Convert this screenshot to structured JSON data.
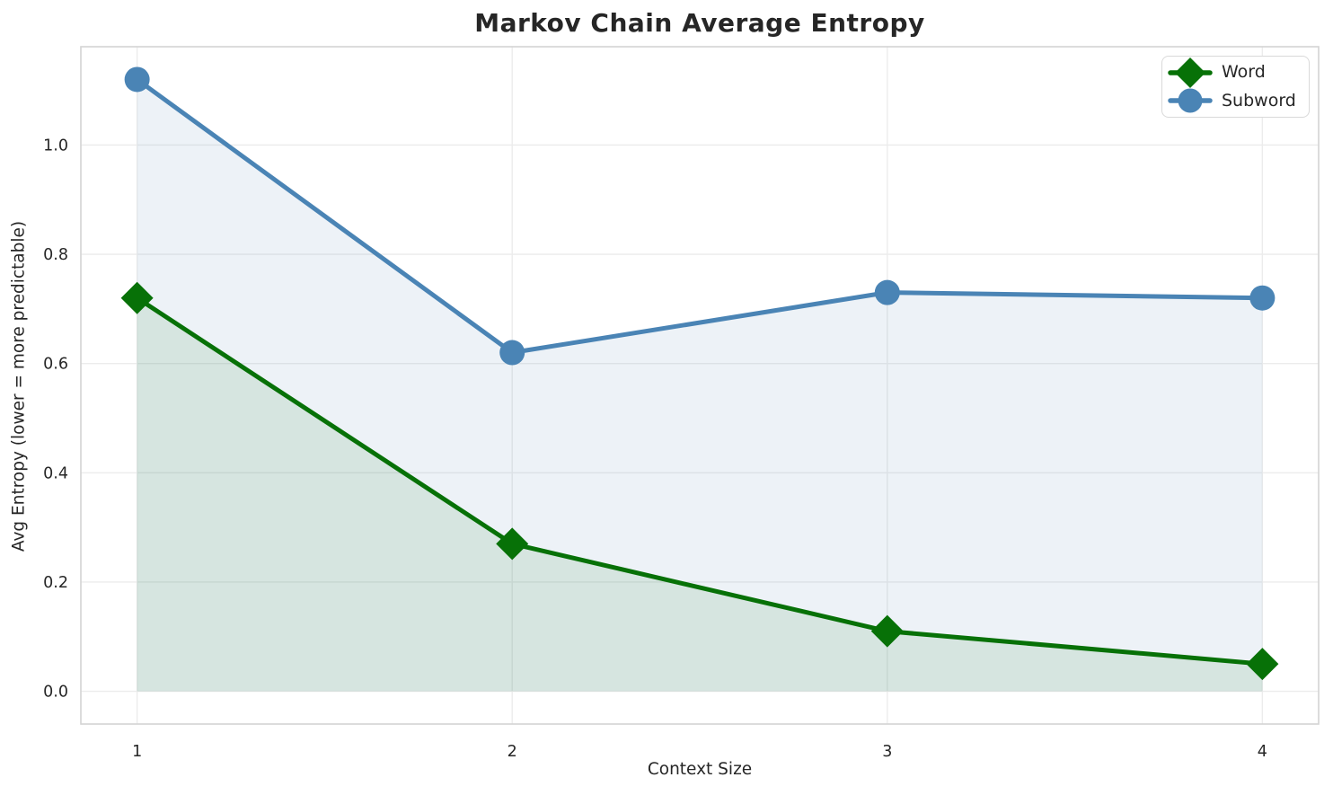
{
  "chart_data": {
    "type": "line",
    "title": "Markov Chain Average Entropy",
    "xlabel": "Context Size",
    "ylabel": "Avg Entropy (lower = more predictable)",
    "x": [
      1,
      2,
      3,
      4
    ],
    "series": [
      {
        "name": "Word",
        "values": [
          0.72,
          0.27,
          0.11,
          0.05
        ],
        "color": "#077107",
        "marker": "diamond",
        "fill_to_zero": true,
        "fill_opacity": 0.1
      },
      {
        "name": "Subword",
        "values": [
          1.12,
          0.62,
          0.73,
          0.72
        ],
        "color": "#4a84b5",
        "marker": "circle",
        "fill_to_zero": true,
        "fill_opacity": 0.1
      }
    ],
    "xlim": [
      0.85,
      4.15
    ],
    "ylim": [
      -0.06,
      1.18
    ],
    "xticks": {
      "values": [
        1,
        2,
        3,
        4
      ],
      "labels": [
        "1",
        "2",
        "3",
        "4"
      ]
    },
    "yticks": {
      "values": [
        0.0,
        0.2,
        0.4,
        0.6,
        0.8,
        1.0
      ],
      "labels": [
        "0.0",
        "0.2",
        "0.4",
        "0.6",
        "0.8",
        "1.0"
      ]
    },
    "grid": true,
    "legend_position": "upper right",
    "colors": {
      "grid": "#ececec",
      "spine": "#d4d4d4",
      "title": "#262626",
      "tick_text": "#262626",
      "plot_bg": "#ffffff"
    },
    "line_width": 5,
    "tick_font_size": 17.5
  }
}
